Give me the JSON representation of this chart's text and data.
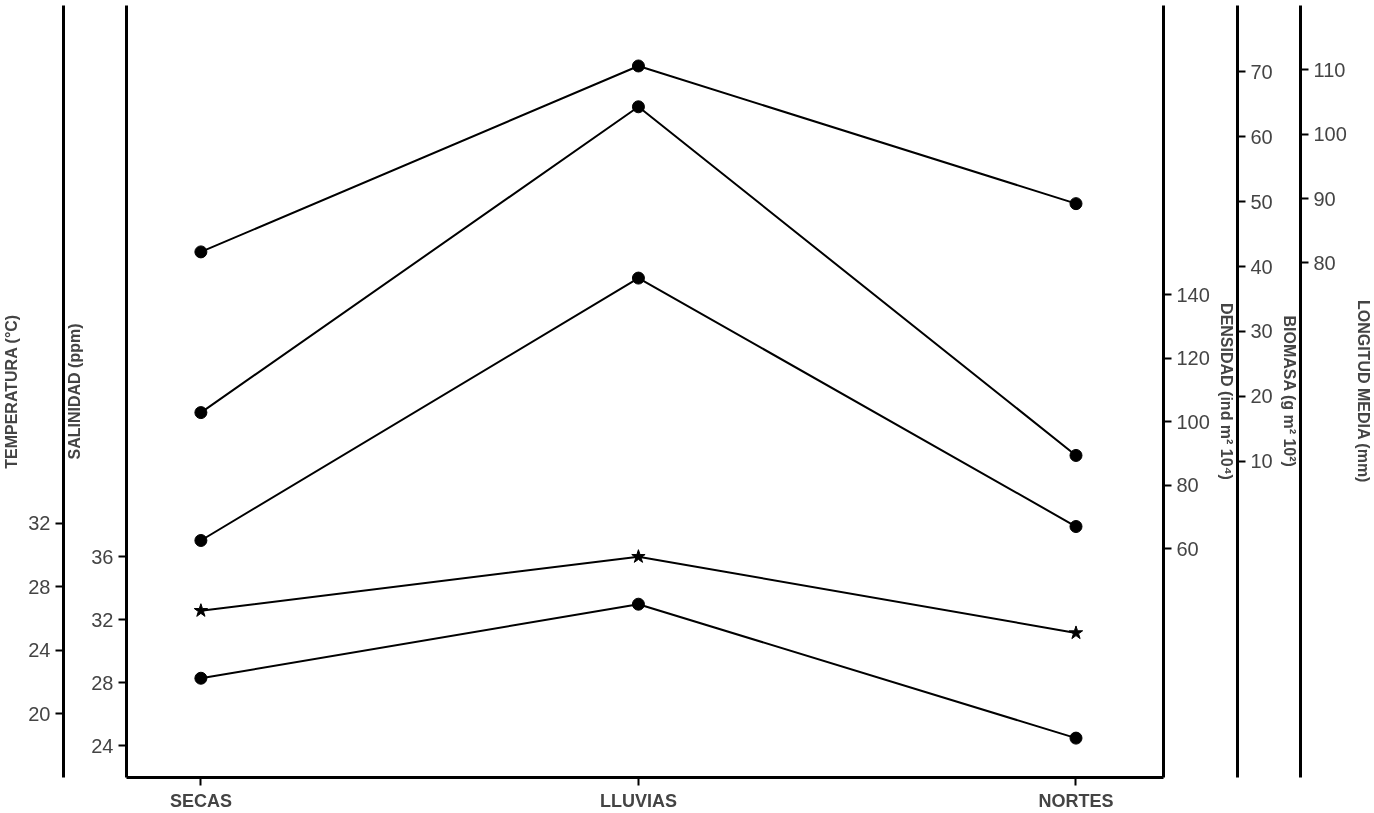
{
  "chart_data": [
    {
      "type": "line",
      "categories": [
        "SECAS",
        "LLUVIAS",
        "NORTES"
      ],
      "ylabel": "SALINIDAD (ppm)",
      "ylim": [
        22,
        71
      ],
      "yticks": [
        24,
        28,
        32,
        36
      ],
      "y2label": "TEMPERATURA (°C)",
      "y2lim": [
        16,
        64.6
      ],
      "y2ticks": [
        20,
        24,
        28,
        32
      ],
      "y3label": "DENSIDAD (ind m² 10⁴)",
      "y3lim": [
        -12,
        231
      ],
      "y3ticks": [
        60,
        80,
        100,
        120,
        140
      ],
      "series": [
        {
          "color": "#000000",
          "axis": "y2",
          "marker": "star",
          "values": [
            26.5,
            29.9,
            25.1
          ]
        },
        {
          "color": "#000000",
          "axis": "y",
          "marker": "circle",
          "values": [
            28.3,
            33.0,
            24.5
          ]
        },
        {
          "color": "#000000",
          "axis": "y3",
          "marker": "circle",
          "values": [
            62.6,
            145.2,
            67
          ]
        }
      ],
      "grid": false,
      "line_style": "solid"
    },
    {
      "type": "line",
      "categories": [
        "SECAS",
        "LLUVIAS",
        "NORTES"
      ],
      "tick_labels": "y",
      "ylabel": "BIOMASA (g m² 10²)",
      "ylim": [
        -38.7,
        80.2
      ],
      "yticks": [
        10,
        20,
        30,
        40,
        50,
        60,
        70
      ],
      "y2label": "LONGITUD MEDIA (mm)",
      "y2lim": [
        0,
        120
      ],
      "y2ticks": [
        80,
        90,
        100,
        110
      ],
      "series": [
        {
          "color": "#000000",
          "axis": "y",
          "marker": "circle",
          "values": [
            17.5,
            64.6,
            10.9
          ]
        },
        {
          "color": "#000000",
          "axis": "y2",
          "marker": "circle",
          "values": [
            81.7,
            110.6,
            89.2
          ]
        }
      ],
      "grid": false,
      "line_style": "solid"
    }
  ]
}
